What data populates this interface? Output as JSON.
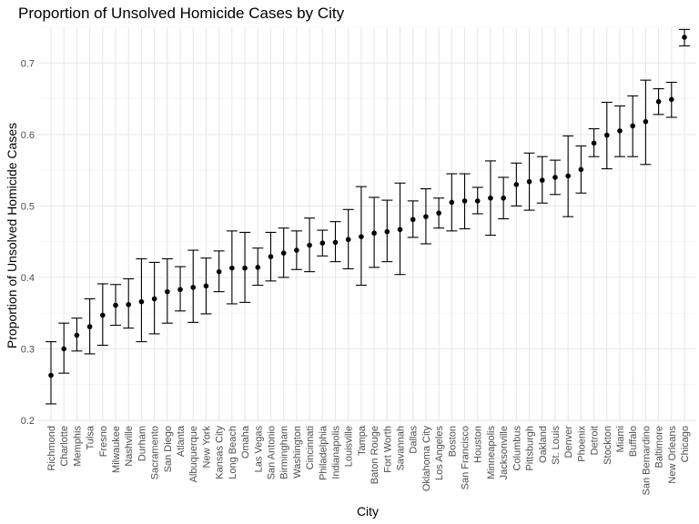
{
  "chart_data": {
    "type": "scatter",
    "title": "Proportion of Unsolved Homicide Cases by City",
    "xlabel": "City",
    "ylabel": "Proportion of Unsolved Homicide Cases",
    "ylim": [
      0.2,
      0.75
    ],
    "yticks": [
      0.2,
      0.3,
      0.4,
      0.5,
      0.6,
      0.7
    ],
    "ytick_labels": [
      "0.2",
      "0.3",
      "0.4",
      "0.5",
      "0.6",
      "0.7"
    ],
    "grid": true,
    "error_bars": true,
    "categories": [
      "Richmond",
      "Charlotte",
      "Memphis",
      "Tulsa",
      "Fresno",
      "Milwaukee",
      "Nashville",
      "Durham",
      "Sacramento",
      "San Diego",
      "Atlanta",
      "Albuquerque",
      "New York",
      "Kansas City",
      "Long Beach",
      "Omaha",
      "Las Vegas",
      "San Antonio",
      "Birmingham",
      "Washington",
      "Cincinnati",
      "Philadelphia",
      "Indianapolis",
      "Louisville",
      "Tampa",
      "Baton Rouge",
      "Fort Worth",
      "Savannah",
      "Dallas",
      "Oklahoma City",
      "Los Angeles",
      "Boston",
      "San Francisco",
      "Houston",
      "Minneapolis",
      "Jacksonville",
      "Columbus",
      "Pittsburgh",
      "Oakland",
      "St. Louis",
      "Denver",
      "Phoenix",
      "Detroit",
      "Stockton",
      "Miami",
      "Buffalo",
      "San Bernardino",
      "Baltimore",
      "New Orleans",
      "Chicago"
    ],
    "values": [
      0.263,
      0.3,
      0.319,
      0.331,
      0.347,
      0.361,
      0.362,
      0.366,
      0.37,
      0.38,
      0.383,
      0.386,
      0.388,
      0.408,
      0.413,
      0.413,
      0.414,
      0.429,
      0.434,
      0.438,
      0.445,
      0.448,
      0.449,
      0.453,
      0.457,
      0.462,
      0.464,
      0.467,
      0.481,
      0.485,
      0.49,
      0.505,
      0.507,
      0.507,
      0.511,
      0.511,
      0.53,
      0.534,
      0.536,
      0.54,
      0.542,
      0.551,
      0.588,
      0.599,
      0.605,
      0.612,
      0.618,
      0.646,
      0.649,
      0.736
    ],
    "lower": [
      0.223,
      0.266,
      0.297,
      0.293,
      0.305,
      0.333,
      0.329,
      0.31,
      0.321,
      0.336,
      0.353,
      0.337,
      0.349,
      0.38,
      0.363,
      0.365,
      0.389,
      0.395,
      0.4,
      0.411,
      0.408,
      0.43,
      0.422,
      0.412,
      0.389,
      0.414,
      0.422,
      0.404,
      0.456,
      0.447,
      0.469,
      0.465,
      0.468,
      0.489,
      0.459,
      0.482,
      0.5,
      0.494,
      0.504,
      0.516,
      0.485,
      0.518,
      0.569,
      0.552,
      0.569,
      0.569,
      0.558,
      0.628,
      0.624,
      0.724
    ],
    "upper": [
      0.31,
      0.336,
      0.343,
      0.37,
      0.391,
      0.39,
      0.398,
      0.426,
      0.421,
      0.426,
      0.415,
      0.438,
      0.427,
      0.437,
      0.465,
      0.463,
      0.441,
      0.463,
      0.469,
      0.465,
      0.483,
      0.466,
      0.478,
      0.495,
      0.527,
      0.512,
      0.508,
      0.532,
      0.507,
      0.524,
      0.511,
      0.545,
      0.545,
      0.526,
      0.563,
      0.54,
      0.56,
      0.574,
      0.569,
      0.564,
      0.598,
      0.584,
      0.608,
      0.645,
      0.64,
      0.654,
      0.676,
      0.664,
      0.673,
      0.747
    ]
  }
}
